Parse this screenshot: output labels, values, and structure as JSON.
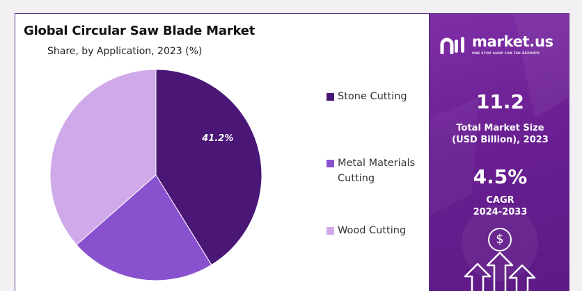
{
  "chart_data": {
    "type": "pie",
    "title": "Global Circular Saw Blade Market",
    "subtitle": "Share, by Application, 2023 (%)",
    "slices": [
      {
        "name": "Stone Cutting",
        "value": 41.2,
        "label": "41.2%",
        "color": "#4a1777"
      },
      {
        "name": "Metal Materials Cutting",
        "value": 22.3,
        "color": "#8852cf"
      },
      {
        "name": "Wood Cutting",
        "value": 36.5,
        "color": "#cfa9ea"
      }
    ],
    "legend": {
      "placement": "right",
      "items": [
        {
          "line1": "Stone Cutting",
          "line2": "",
          "color": "#4a1777"
        },
        {
          "line1": "Metal Materials",
          "line2": "Cutting",
          "color": "#8852cf"
        },
        {
          "line1": "Wood Cutting",
          "line2": "",
          "color": "#cfa9ea"
        }
      ]
    }
  },
  "sidebar": {
    "brand": "market.us",
    "tagline": "ONE STOP SHOP FOR THE REPORTS",
    "market_size_value": "11.2",
    "market_size_label_line1": "Total Market Size",
    "market_size_label_line2": "(USD Billion), 2023",
    "cagr_value": "4.5%",
    "cagr_label_line1": "CAGR",
    "cagr_label_line2": "2024-2033",
    "currency_symbol": "$",
    "background_color": "#6a1f92"
  }
}
